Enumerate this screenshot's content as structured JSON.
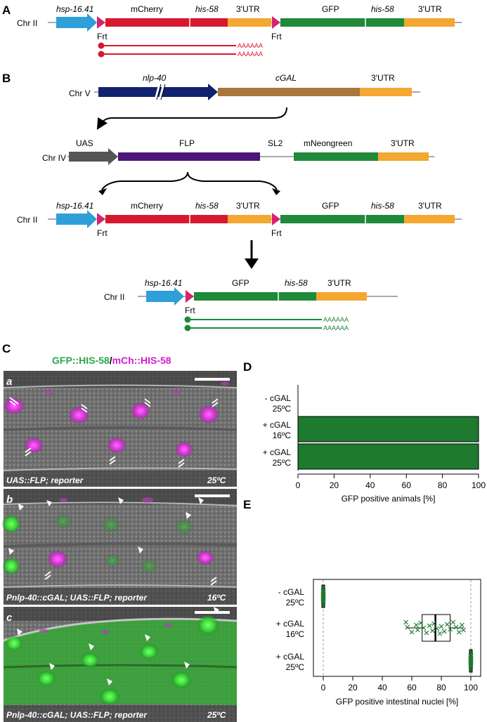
{
  "colors": {
    "hsp": "#2f9fd8",
    "frt": "#d6226f",
    "mcherry": "#d7192f",
    "utr": "#f4a731",
    "gfp": "#1e8a3a",
    "nlp": "#12226e",
    "cgal": "#a9763e",
    "uas": "#555555",
    "flp": "#4b1678",
    "mneon": "#1e8a3a",
    "bar": "#1e7a2e",
    "green_label": "#2aa84a",
    "magenta_label": "#d21ccf"
  },
  "panelA": {
    "letter": "A",
    "chr": "Chr II",
    "hsp": "hsp-16.41",
    "mcherry": "mCherry",
    "his1": "his-58",
    "utr1": "3'UTR",
    "gfp": "GFP",
    "his2": "his-58",
    "utr2": "3'UTR",
    "frt1": "Frt",
    "frt2": "Frt",
    "polyA1": "AAAAAA",
    "polyA2": "AAAAAA"
  },
  "panelB": {
    "letter": "B",
    "chrV": "Chr V",
    "nlp": "nlp-40",
    "cgal": "cGAL",
    "utrV": "3'UTR",
    "chrIV": "Chr IV",
    "uas": "UAS",
    "flp": "FLP",
    "sl2": "SL2",
    "mneon": "mNeongreen",
    "utrIV": "3'UTR",
    "chrII": "Chr II",
    "hsp": "hsp-16.41",
    "mcherry": "mCherry",
    "his1": "his-58",
    "utr1": "3'UTR",
    "gfp": "GFP",
    "his2": "his-58",
    "utr2": "3'UTR",
    "frt1": "Frt",
    "frt2": "Frt",
    "chrIIout": "Chr II",
    "hspOut": "hsp-16.41",
    "gfpOut": "GFP",
    "hisOut": "his-58",
    "utrOut": "3'UTR",
    "frtOut": "Frt",
    "polyA1": "AAAAAA",
    "polyA2": "AAAAAA"
  },
  "panelC": {
    "letter": "C",
    "title_green": "GFP::HIS-58",
    "title_sep": "/",
    "title_magenta": "mCh::HIS-58",
    "images": [
      {
        "letter": "a",
        "caption": "UAS::FLP; reporter",
        "temp": "25ºC"
      },
      {
        "letter": "b",
        "caption": "Pnlp-40::cGAL; UAS::FLP; reporter",
        "temp": "16ºC"
      },
      {
        "letter": "c",
        "caption": "Pnlp-40::cGAL; UAS::FLP; reporter",
        "temp": "25ºC"
      }
    ]
  },
  "panelD": {
    "letter": "D"
  },
  "panelE": {
    "letter": "E"
  },
  "chart_data": [
    {
      "type": "bar",
      "orientation": "horizontal",
      "categories": [
        "- cGAL 25ºC",
        "+ cGAL 16ºC",
        "+ cGAL 25ºC"
      ],
      "cat_line1": [
        "- cGAL",
        "+ cGAL",
        "+ cGAL"
      ],
      "cat_line2": [
        "25ºC",
        "16ºC",
        "25ºC"
      ],
      "values": [
        0,
        100,
        100
      ],
      "xlabel": "GFP positive animals [%]",
      "xlim": [
        0,
        100
      ],
      "xticks": [
        0,
        20,
        40,
        60,
        80,
        100
      ]
    },
    {
      "type": "box",
      "categories": [
        "- cGAL 25ºC",
        "+ cGAL 16ºC",
        "+ cGAL 25ºC"
      ],
      "cat_line1": [
        "- cGAL",
        "+ cGAL",
        "+ cGAL"
      ],
      "cat_line2": [
        "25ºC",
        "16ºC",
        "25ºC"
      ],
      "boxes": [
        {
          "min": 0,
          "q1": 0,
          "median": 0,
          "q3": 0,
          "max": 0
        },
        {
          "min": 56,
          "q1": 67,
          "median": 76,
          "q3": 86,
          "max": 95
        },
        {
          "min": 100,
          "q1": 100,
          "median": 100,
          "q3": 100,
          "max": 100
        }
      ],
      "points": [
        [
          0,
          0,
          0,
          0,
          0,
          0,
          0,
          0,
          0,
          0,
          0,
          0
        ],
        [
          56,
          57,
          60,
          63,
          64,
          66,
          68,
          70,
          72,
          74,
          75,
          77,
          79,
          80,
          82,
          84,
          86,
          88,
          90,
          92,
          94,
          95
        ],
        [
          100,
          100,
          100,
          100,
          100,
          100,
          100,
          100,
          100,
          100,
          100,
          100
        ]
      ],
      "xlabel": "GFP positive intestinal nuclei [%]",
      "xlim": [
        0,
        100
      ],
      "xticks": [
        0,
        20,
        40,
        60,
        80,
        100
      ]
    }
  ]
}
